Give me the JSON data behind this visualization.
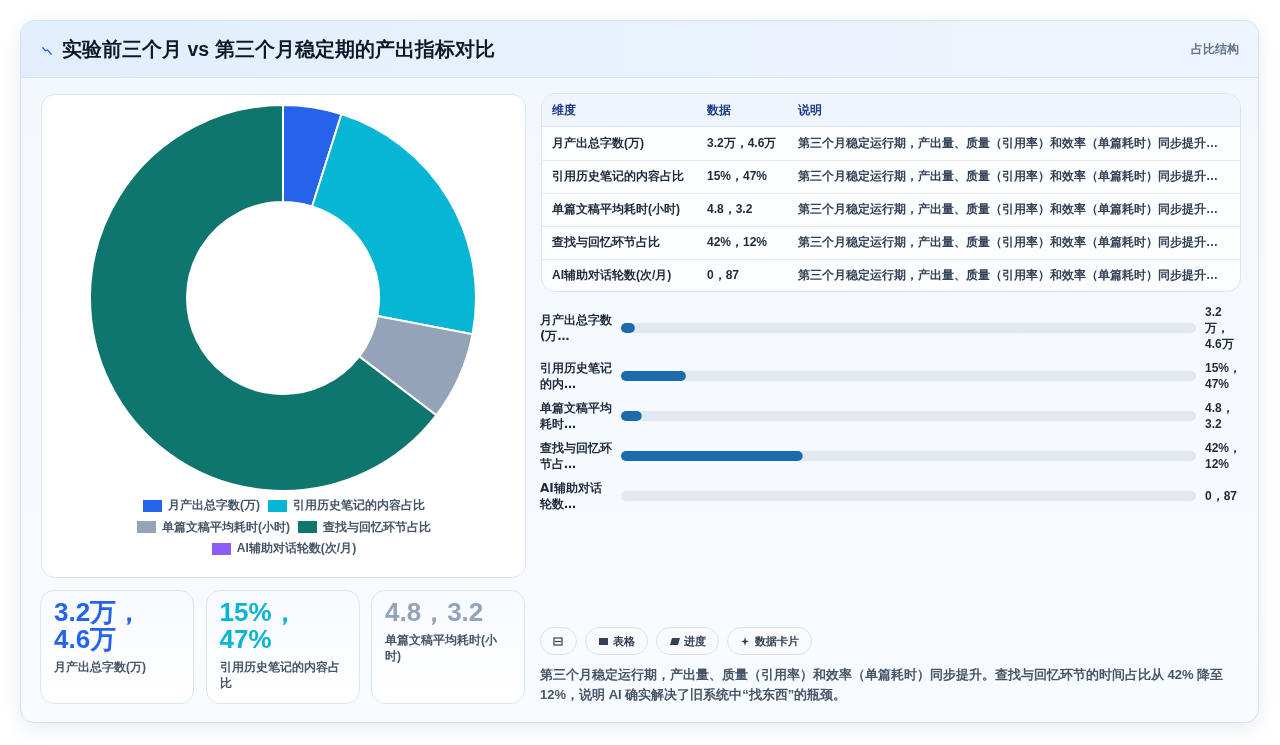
{
  "chart_data": [
    {
      "type": "donut",
      "title": "实验前三个月 vs 第三个月稳定期的产出指标对比",
      "annotations": [
        "占比结构"
      ],
      "categories": [
        "月产出总字数(万)",
        "引用历史笔记的内容占比",
        "单篇文稿平均耗时(小时)",
        "查找与回忆环节占比",
        "AI辅助对话轮数(次/月)"
      ],
      "values": [
        4.9,
        23.1,
        7.4,
        64.6,
        0
      ],
      "colors": [
        "#2563eb",
        "#06b6d4",
        "#94a3b8",
        "#0f766e",
        "#8b5cf6"
      ],
      "legend": "bottom"
    },
    {
      "type": "other",
      "categories": [
        "维度",
        "数据",
        "说明"
      ],
      "y_categories": [
        "月产出总字数(万)",
        "引用历史笔记的内容占比",
        "单篇文稿平均耗时(小时)",
        "查找与回忆环节占比",
        "AI辅助对话轮数(次/月)"
      ],
      "cell_labels": [
        [
          "3.2万，4.6万",
          "第三个月稳定运行期，产出量、质量（引用率）和效率（单篇耗时）同步提升…"
        ],
        [
          "15%，47%",
          "第三个月稳定运行期，产出量、质量（引用率）和效率（单篇耗时）同步提升…"
        ],
        [
          "4.8，3.2",
          "第三个月稳定运行期，产出量、质量（引用率）和效率（单篇耗时）同步提升…"
        ],
        [
          "42%，12%",
          "第三个月稳定运行期，产出量、质量（引用率）和效率（单篇耗时）同步提升…"
        ],
        [
          "0，87",
          "第三个月稳定运行期，产出量、质量（引用率）和效率（单篇耗时）同步提升…"
        ]
      ]
    },
    {
      "type": "bar",
      "orientation": "horizontal",
      "categories": [
        "月产出总字数(万…",
        "引用历史笔记的内…",
        "单篇文稿平均耗时…",
        "查找与回忆环节占…",
        "AI辅助对话轮数…"
      ],
      "values": [
        3.2,
        15,
        4.8,
        42,
        0
      ],
      "value_labels": [
        "3.2万，4.6万",
        "15%，47%",
        "4.8，3.2",
        "42%，12%",
        "0，87"
      ],
      "color": "#1a6cac"
    },
    {
      "type": "other",
      "categories": [
        "月产出总字数(万)",
        "引用历史笔记的内容占比",
        "单篇文稿平均耗时(小时)"
      ],
      "value_labels": [
        "3.2万，4.6万",
        "15%，47%",
        "4.8，3.2"
      ],
      "colors": [
        "#2563eb",
        "#06b6d4",
        "#94a3b8"
      ]
    },
    {
      "type": "other",
      "categories": [
        null,
        "表格",
        "进度",
        "数据卡片"
      ],
      "annotations": [
        "第三个月稳定运行期，产出量、质量（引用率）和效率（单篇耗时）同步提升。查找与回忆环节的时间占比从 42% 降至 12%，说明 AI 确实解决了旧系统中“找东西”的瓶颈。"
      ]
    }
  ]
}
